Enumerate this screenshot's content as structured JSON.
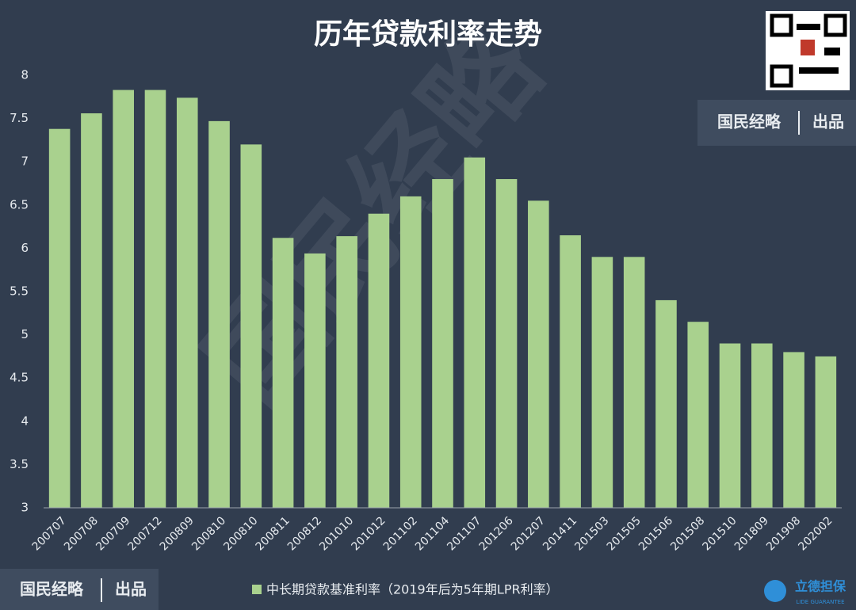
{
  "chart_data": {
    "type": "bar",
    "title": "历年贷款利率走势",
    "categories": [
      "200707",
      "200708",
      "200709",
      "200712",
      "200809",
      "200810",
      "200810",
      "200811",
      "200812",
      "201010",
      "201012",
      "201102",
      "201104",
      "201107",
      "201206",
      "201207",
      "201411",
      "201503",
      "201505",
      "201506",
      "201508",
      "201510",
      "201809",
      "201908",
      "202002"
    ],
    "series": [
      {
        "name": "中长期贷款基准利率（2019年后为5年期LPR利率）",
        "color": "#a9d18e",
        "values": [
          7.38,
          7.56,
          7.83,
          7.83,
          7.74,
          7.47,
          7.2,
          6.12,
          5.94,
          6.14,
          6.4,
          6.6,
          6.8,
          7.05,
          6.8,
          6.55,
          6.15,
          5.9,
          5.9,
          5.4,
          5.15,
          4.9,
          4.9,
          4.8,
          4.75
        ]
      }
    ],
    "ylim": [
      3,
      8
    ],
    "yticks": [
      3,
      3.5,
      4,
      4.5,
      5,
      5.5,
      6,
      6.5,
      7,
      7.5,
      8
    ],
    "grid": false,
    "legend": "bottom"
  },
  "watermark": "国民经略",
  "badge_top": {
    "name": "国民经略",
    "tag": "出品"
  },
  "badge_bottom": {
    "name": "国民经略",
    "tag": "出品"
  },
  "logo": {
    "name": "立德担保",
    "sub": "LIDE GUARANTEE"
  }
}
